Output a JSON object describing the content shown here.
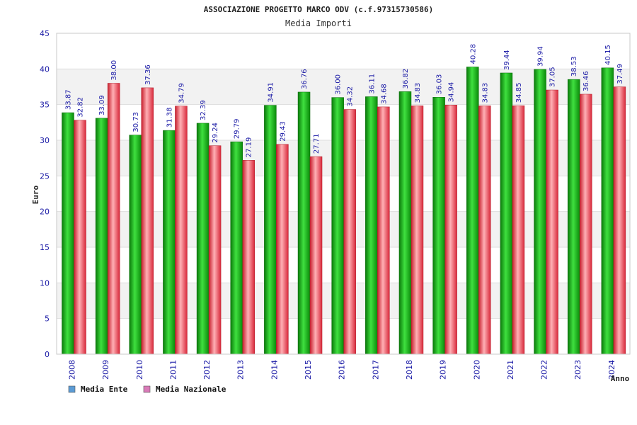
{
  "chart_data": {
    "type": "bar",
    "title": "ASSOCIAZIONE PROGETTO MARCO ODV (c.f.97315730586)",
    "subtitle": "Media Importi",
    "xlabel": "Anno",
    "ylabel": "Euro",
    "ylim": [
      0,
      45
    ],
    "yticks": [
      0,
      5,
      10,
      15,
      20,
      25,
      30,
      35,
      40,
      45
    ],
    "grid": true,
    "legend_position": "bottom-left",
    "categories": [
      "2008",
      "2009",
      "2010",
      "2011",
      "2012",
      "2013",
      "2014",
      "2015",
      "2016",
      "2017",
      "2018",
      "2019",
      "2020",
      "2021",
      "2022",
      "2023",
      "2024"
    ],
    "series": [
      {
        "name": "Media Ente",
        "color": "#1fb51f",
        "legend_color": "#5b9bd5",
        "values": [
          33.87,
          33.09,
          30.73,
          31.38,
          32.39,
          29.79,
          34.91,
          36.76,
          36.0,
          36.11,
          36.82,
          36.03,
          40.28,
          39.44,
          39.94,
          38.53,
          40.15
        ],
        "labels": [
          "33.87",
          "33.09",
          "30.73",
          "31.38",
          "32.39",
          "29.79",
          "34.91",
          "36.76",
          "36.00",
          "36.11",
          "36.82",
          "36.03",
          "40.28",
          "39.44",
          "39.94",
          "38.53",
          "40.15"
        ]
      },
      {
        "name": "Media Nazionale",
        "color": "#e83a4a",
        "legend_color": "#d97ab8",
        "values": [
          32.82,
          38.0,
          37.36,
          34.79,
          29.24,
          27.19,
          29.43,
          27.71,
          34.32,
          34.68,
          34.83,
          34.94,
          34.83,
          34.85,
          37.05,
          36.46,
          37.49
        ],
        "labels": [
          "32.82",
          "38.00",
          "37.36",
          "34.79",
          "29.24",
          "27.19",
          "29.43",
          "27.71",
          "34.32",
          "34.68",
          "34.83",
          "34.94",
          "34.83",
          "34.85",
          "37.05",
          "36.46",
          "37.49"
        ]
      }
    ]
  }
}
